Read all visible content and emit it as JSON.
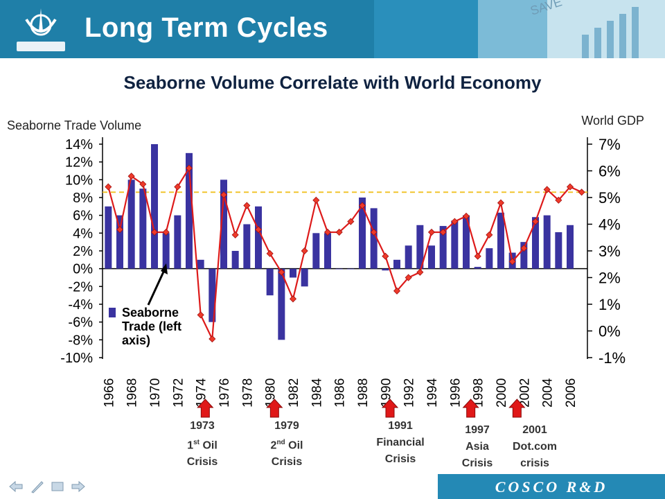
{
  "header": {
    "title": "Long Term Cycles"
  },
  "footer": {
    "brand_text": "COSCO R&D"
  },
  "crises": [
    {
      "year": "1973",
      "line1_main": "1",
      "line1_sup": "st",
      "line1_rest": " Oil",
      "line2": "Crisis"
    },
    {
      "year": "1979",
      "line1_main": "2",
      "line1_sup": "nd",
      "line1_rest": " Oil",
      "line2": "Crisis"
    },
    {
      "year": "1991",
      "line1_main": "Financial",
      "line1_sup": "",
      "line1_rest": "",
      "line2": "Crisis"
    },
    {
      "year": "1997",
      "line1_main": "Asia",
      "line1_sup": "",
      "line1_rest": "",
      "line2": "Crisis"
    },
    {
      "year": "2001",
      "line1_main": "Dot.com",
      "line1_sup": "",
      "line1_rest": "",
      "line2": "crisis"
    }
  ],
  "chart_data": {
    "type": "bar",
    "title": "Seaborne Volume Correlate with World Economy",
    "ylabel_left": "Seaborne Trade Volume",
    "ylabel_right": "World GDP",
    "legend": {
      "label": "Seaborne Trade (left axis)",
      "placement": "bottom-left inside plot"
    },
    "categories": [
      "1966",
      "1967",
      "1968",
      "1969",
      "1970",
      "1971",
      "1972",
      "1973",
      "1974",
      "1975",
      "1976",
      "1977",
      "1978",
      "1979",
      "1980",
      "1981",
      "1982",
      "1983",
      "1984",
      "1985",
      "1986",
      "1987",
      "1988",
      "1989",
      "1990",
      "1991",
      "1992",
      "1993",
      "1994",
      "1995",
      "1996",
      "1997",
      "1998",
      "1999",
      "2000",
      "2001",
      "2002",
      "2003",
      "2004",
      "2005",
      "2006",
      "2007"
    ],
    "x_tick_labels": [
      "1966",
      "1968",
      "1970",
      "1972",
      "1974",
      "1976",
      "1978",
      "1980",
      "1982",
      "1984",
      "1986",
      "1988",
      "1990",
      "1992",
      "1994",
      "1996",
      "1998",
      "2000",
      "2002",
      "2004",
      "2006"
    ],
    "ylim_left": [
      -10,
      14
    ],
    "yticks_left": [
      "14%",
      "12%",
      "10%",
      "8%",
      "6%",
      "4%",
      "2%",
      "0%",
      "-2%",
      "-4%",
      "-6%",
      "-8%",
      "-10%"
    ],
    "ylim_right": [
      -1,
      7
    ],
    "yticks_right": [
      "7%",
      "6%",
      "5%",
      "4%",
      "3%",
      "2%",
      "1%",
      "0%",
      "-1%"
    ],
    "series": [
      {
        "name": "Seaborne Trade (left axis)",
        "axis": "left",
        "type": "bar",
        "color": "#3a33a0",
        "values": [
          7,
          6,
          10,
          9,
          14,
          4,
          6,
          13,
          1,
          -6,
          10,
          2,
          5,
          7,
          -3,
          -8,
          -1,
          -2,
          4,
          4,
          0,
          0,
          8,
          6.8,
          -0.2,
          1,
          2.6,
          4.9,
          2.6,
          4.8,
          5.4,
          6,
          0.2,
          2.3,
          6.3,
          1.8,
          3,
          5.8,
          6,
          4.1,
          4.9,
          null
        ]
      },
      {
        "axis": "right",
        "type": "line",
        "color": "#dd1a1a",
        "values": [
          5.4,
          3.8,
          5.8,
          5.5,
          3.7,
          3.7,
          5.4,
          6.1,
          0.6,
          -0.3,
          5.1,
          3.6,
          4.7,
          3.8,
          2.9,
          2.2,
          1.2,
          3.0,
          4.9,
          3.7,
          3.7,
          4.1,
          4.7,
          3.7,
          2.8,
          1.5,
          2.0,
          2.2,
          3.7,
          3.7,
          4.1,
          4.3,
          2.8,
          3.6,
          4.8,
          2.6,
          3.1,
          4.1,
          5.3,
          4.9,
          5.4,
          5.2
        ]
      }
    ],
    "reference_line": {
      "axis": "right",
      "value": 5.2,
      "color": "#f0c020",
      "style": "dashed"
    },
    "colors": {
      "bars": "#3a33a0",
      "gdp_line": "#dd1a1a",
      "marker": "#ee3a2a",
      "reference": "#f0c020"
    }
  }
}
